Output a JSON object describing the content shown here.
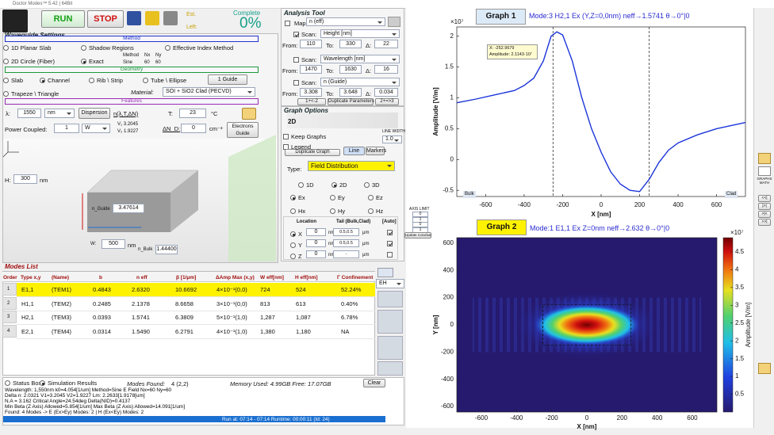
{
  "title_bar": "Doctor Modes™ 5.42 | 64Bit",
  "toolbar": {
    "run": "RUN",
    "stop": "STOP",
    "est": "Est.",
    "left": "Left:",
    "complete": "Complete",
    "percent": "0%"
  },
  "waveguide": {
    "title": "Waveguide Settings",
    "method": {
      "header": "Method",
      "options": [
        "1D Planar Slab",
        "Shadow Regions",
        "Effective Index Method",
        "2D Circle (Fiber)",
        "Exact"
      ],
      "table_head": [
        "Method",
        "Nx",
        "Ny"
      ],
      "table_row": [
        "Sine",
        "60",
        "60"
      ]
    },
    "geometry": {
      "header": "Geometry",
      "options": [
        "Slab",
        "Channel",
        "Rib \\ Strip",
        "Tube \\ Ellipse",
        "Trapeze \\ Triangle"
      ],
      "guides": "1 Guide",
      "material_label": "Material:",
      "material": "SOI + SiO2 Clad (PECVD)"
    },
    "features": {
      "header": "Features",
      "lambda_label": "λ:",
      "lambda": "1550",
      "lambda_unit": "nm",
      "dispersion": "Dispersion",
      "n_model": "n(λ,T,ΔN)",
      "t_label": "T:",
      "t": "23",
      "t_unit": "°C",
      "power_label": "Power Coupled:",
      "power": "1",
      "power_unit": "W",
      "v1": "V₁  3.2045",
      "v2": "V₂  1.9227",
      "dn_label": "ΔN_D:",
      "dn": "0",
      "dn_unit": "cm⁻³",
      "electrons": "Electrons",
      "guide": "Guide"
    },
    "drawing": {
      "h_label": "H:",
      "h": "300",
      "h_unit": "nm",
      "w_label": "W:",
      "w": "500",
      "w_unit": "nm",
      "n_guide_label": "n_Guide",
      "n_guide": "3.47614",
      "n_bulk_label": "n_Bulk",
      "n_bulk": "1.44400"
    }
  },
  "modes": {
    "title": "Modes List",
    "headers": [
      "Order",
      "Type x,y",
      "(Name)",
      "b",
      "n eff",
      "β [1/μm]",
      "ΔAmp Max (x,y)",
      "W eff[nm]",
      "H eff[nm]",
      "Γ Confinement"
    ],
    "rows": [
      [
        "1",
        "E1,1",
        "(TEM1)",
        "0.4843",
        "2.6320",
        "10.6692",
        "4×10⁻¹(0,0)",
        "724",
        "524",
        "52.24%"
      ],
      [
        "2",
        "H1,1",
        "(TEM2)",
        "0.2485",
        "2.1378",
        "8.6658",
        "3×10⁻¹(0,0)",
        "813",
        "613",
        "0.40%"
      ],
      [
        "3",
        "H2,1",
        "(TEM3)",
        "0.0393",
        "1.5741",
        "6.3809",
        "5×10⁻¹(1,0)",
        "1,287",
        "1,087",
        "6.78%"
      ],
      [
        "4",
        "E2,1",
        "(TEM4)",
        "0.0314",
        "1.5490",
        "6.2791",
        "4×10⁻¹(1,0)",
        "1,380",
        "1,180",
        "NA"
      ]
    ],
    "polarization": "EH"
  },
  "status": {
    "status_box": "Status Box",
    "sim_results": "Simulation Results",
    "modes_found_label": "Modes Found:",
    "modes_found": "4 (2,2)",
    "memory": "Memory Used: 4.99GB   Free: 17.07GB",
    "clear": "Clear",
    "lines": [
      "Wavelength: 1,550nm      k0=4.054[1/um]      Method=Sine E Field      Nx=60   Ny=60",
      "Delta n: 2.0321      V1=3.2045      V2=1.9227      Lm: 2.2633[1.9178[um]",
      "N.A = 3.162      Critical Angle=24.54deg      Delta(NID)=0.4137",
      "Min Beta (Z Axis) Allowed=5.854[1/um]      Max Beta (Z Axis) Allowed=14.091[1/um]",
      "Found: 4 Modes -> E (Ex>Ey) Modes: 2  |  H (Ex<Ey) Modes: 2"
    ],
    "run": "Run at: 07:14 - 07:14    Runtime: 00:00:11    (Id: 24)"
  },
  "analysis": {
    "title": "Analysis Tool",
    "map_label": "Map:",
    "map": "n (eff)",
    "scans": [
      {
        "label": "Scan:",
        "param": "Height [nm]",
        "from_label": "From:",
        "from": "110",
        "to_label": "To:",
        "to": "330",
        "delta_label": "Δ:",
        "delta": "22"
      },
      {
        "label": "Scan:",
        "param": "Wavelength [nm]",
        "from_label": "From:",
        "from": "1470",
        "to_label": "To:",
        "to": "1630",
        "delta_label": "Δ:",
        "delta": "16"
      },
      {
        "label": "Scan:",
        "param": "n (Guide)",
        "from_label": "From:",
        "from": "3.308",
        "to_label": "To:",
        "to": "3.648",
        "delta_label": "Δ:",
        "delta": "0.034"
      }
    ],
    "buttons": [
      "1+<-2",
      "Duplicate Parameters",
      "2+=>3"
    ]
  },
  "graph_options": {
    "title": "Graph Options",
    "view": "2D",
    "keep": "Keep Graphs",
    "legend": "Legend",
    "duplicate": "Duplicate Graph",
    "line": "Line",
    "markers": "Markers",
    "line_width_label": "LINE WIDTH",
    "line_width": "1.0",
    "type_label": "Type:",
    "type": "Field Distribution",
    "dims": [
      "1D",
      "2D",
      "3D"
    ],
    "fields": [
      "Ex",
      "Ey",
      "Ez",
      "Hx",
      "Hy",
      "Hz"
    ],
    "axis_limit": "AXIS LIMIT",
    "axis_values": [
      "0",
      "1",
      "0",
      "1"
    ],
    "update": "Update Colorbar",
    "location": {
      "headers": [
        "Location",
        "Tail (Bulk,Clad)",
        "[Auto]"
      ],
      "rows": [
        [
          "X",
          "0",
          "nm",
          "0.5,0.5",
          "μm"
        ],
        [
          "Y",
          "0",
          "nm",
          "0.5,0.5",
          "μm"
        ],
        [
          "Z",
          "0",
          "nm",
          "-",
          "μm"
        ]
      ]
    }
  },
  "graph1": {
    "title": "Graph 1",
    "mode": "Mode:3  H2,1  Ex  (Y,Z=0,0nm)  neff→1.5741  θ→0°|0",
    "xlabel": "X [nm]",
    "ylabel": "Amplitude [V/m]",
    "multiplier": "×10⁷",
    "tooltip": [
      "X: -252.9679",
      "Amplitude: 2.1143·10⁷"
    ],
    "bulk": "Bulk",
    "clad": "Clad",
    "x": [
      -750,
      -650,
      -550,
      -450,
      -400,
      -350,
      -300,
      -260,
      -230,
      -200,
      -150,
      -100,
      -50,
      0,
      50,
      100,
      150,
      200,
      250,
      300,
      350,
      400,
      500,
      600,
      750
    ],
    "values": [
      0.92,
      0.98,
      1.05,
      1.12,
      1.2,
      1.32,
      1.6,
      2.0,
      2.07,
      2.02,
      1.6,
      1.0,
      0.5,
      0.12,
      -0.2,
      -0.4,
      -0.5,
      -0.52,
      -0.32,
      -0.05,
      0.15,
      0.27,
      0.4,
      0.5,
      0.6
    ],
    "color": "#1b35d8",
    "xlim": [
      -750,
      750
    ],
    "ylim": [
      -0.6,
      2.15
    ],
    "xticks": [
      -600,
      -400,
      -200,
      0,
      200,
      400,
      600
    ],
    "yticks": [
      -0.5,
      0,
      0.5,
      1,
      1.5,
      2
    ]
  },
  "graph2": {
    "title": "Graph 2",
    "mode": "Mode:1  E1,1  Ex  Z=0nm  neff→2.632  θ→0°|0",
    "xlabel": "X [nm]",
    "ylabel": "Y [nm]",
    "colorbar_label": "Amplitude [V/m]",
    "multiplier": "×10⁷",
    "xlim": [
      -740,
      740
    ],
    "ylim": [
      -640,
      640
    ],
    "clim": [
      0,
      4.9
    ],
    "xticks": [
      -600,
      -400,
      -200,
      0,
      200,
      400,
      600
    ],
    "yticks": [
      -600,
      -400,
      -200,
      0,
      200,
      400,
      600
    ],
    "cticks": [
      0.5,
      1,
      1.5,
      2,
      2.5,
      3,
      3.5,
      4,
      4.5
    ]
  },
  "side": {
    "graphs_math": "GRAPHS MATH",
    "nav": [
      "<<|",
      "|>|",
      ">|<",
      ">>|"
    ]
  }
}
